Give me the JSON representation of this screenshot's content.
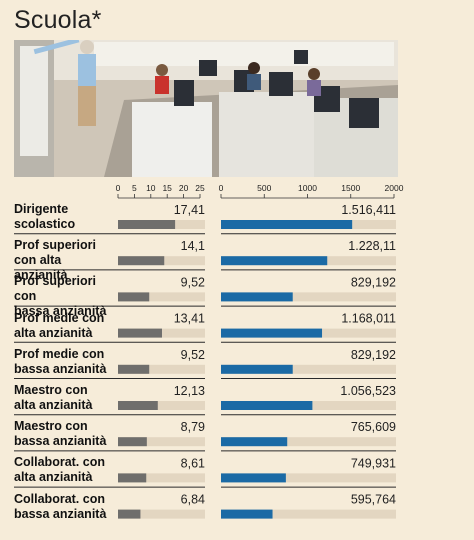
{
  "title": "Scuola*",
  "colors": {
    "background": "#f6ecd9",
    "left_bar": "#6f6e6c",
    "right_bar": "#1b6aa5",
    "track": "#e3d6c1",
    "separator": "#2a2a2a"
  },
  "photo": {
    "icon": "classroom-photo"
  },
  "chart_data": [
    {
      "type": "bar",
      "orientation": "horizontal",
      "xlim": [
        0,
        25
      ],
      "xticks": [
        "0",
        "5",
        "10",
        "15",
        "20",
        "25"
      ],
      "categories": [
        "Dirigente scolastico",
        "Prof superiori con alta anzianità",
        "Prof superiori con bassa anzianità",
        "Prof medie con alta anzianità",
        "Prof medie con bassa anzianità",
        "Maestro con alta anzianità",
        "Maestro con bassa anzianità",
        "Collaborat. con alta anzianità",
        "Collaborat. con bassa anzianità"
      ],
      "values": [
        17.41,
        14.1,
        9.52,
        13.41,
        9.52,
        12.13,
        8.79,
        8.61,
        6.84
      ],
      "value_labels": [
        "17,41",
        "14,1",
        "9,52",
        "13,41",
        "9,52",
        "12,13",
        "8,79",
        "8,61",
        "6,84"
      ]
    },
    {
      "type": "bar",
      "orientation": "horizontal",
      "xlim": [
        0,
        2000
      ],
      "xticks": [
        "0",
        "500",
        "1000",
        "1500",
        "2000"
      ],
      "categories": [
        "Dirigente scolastico",
        "Prof superiori con alta anzianità",
        "Prof superiori con bassa anzianità",
        "Prof medie con alta anzianità",
        "Prof medie con bassa anzianità",
        "Maestro con alta anzianità",
        "Maestro con bassa anzianità",
        "Collaborat. con alta anzianità",
        "Collaborat. con bassa anzianità"
      ],
      "values": [
        1516.411,
        1228.11,
        829.192,
        1168.011,
        829.192,
        1056.523,
        765.609,
        749.931,
        595.764
      ],
      "value_labels": [
        "1.516,411",
        "1.228,11",
        "829,192",
        "1.168,011",
        "829,192",
        "1.056,523",
        "765,609",
        "749,931",
        "595,764"
      ]
    }
  ],
  "rows": [
    {
      "label_line1": "Dirigente",
      "label_line2": "scolastico"
    },
    {
      "label_line1": "Prof superiori",
      "label_line2": "con alta anzianità"
    },
    {
      "label_line1": "Prof superiori con",
      "label_line2": "bassa anzianità"
    },
    {
      "label_line1": "Prof medie con",
      "label_line2": "alta anzianità"
    },
    {
      "label_line1": "Prof medie con",
      "label_line2": "bassa anzianità"
    },
    {
      "label_line1": "Maestro con",
      "label_line2": "alta anzianità"
    },
    {
      "label_line1": "Maestro con",
      "label_line2": "bassa anzianità"
    },
    {
      "label_line1": "Collaborat. con",
      "label_line2": "alta anzianità"
    },
    {
      "label_line1": "Collaborat. con",
      "label_line2": "bassa anzianità"
    }
  ]
}
